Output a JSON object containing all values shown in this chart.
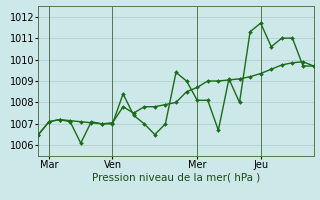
{
  "xlabel": "Pression niveau de la mer( hPa )",
  "background_color": "#cce8e8",
  "grid_color": "#aacccc",
  "line_color": "#1a6b1a",
  "spine_color": "#557755",
  "ylim": [
    1005.5,
    1012.5
  ],
  "yticks": [
    1006,
    1007,
    1008,
    1009,
    1010,
    1011,
    1012
  ],
  "xlim": [
    0,
    156
  ],
  "xtick_labels": [
    "Mar",
    "Ven",
    "Mer",
    "Jeu"
  ],
  "xtick_positions": [
    6,
    42,
    90,
    126
  ],
  "vline_positions": [
    6,
    42,
    90,
    126
  ],
  "series1_x": [
    0,
    6,
    12,
    18,
    24,
    30,
    36,
    42,
    48,
    54,
    60,
    66,
    72,
    78,
    84,
    90,
    96,
    102,
    108,
    114,
    120,
    126,
    132,
    138,
    144,
    150,
    156
  ],
  "series1_y": [
    1006.5,
    1007.1,
    1007.2,
    1007.1,
    1006.1,
    1007.1,
    1007.0,
    1007.0,
    1008.4,
    1007.4,
    1007.0,
    1006.5,
    1007.0,
    1009.4,
    1009.0,
    1008.1,
    1008.1,
    1006.7,
    1009.1,
    1008.0,
    1011.3,
    1011.7,
    1010.6,
    1011.0,
    1011.0,
    1009.7,
    1009.7
  ],
  "series2_x": [
    0,
    6,
    12,
    18,
    24,
    30,
    36,
    42,
    48,
    54,
    60,
    66,
    72,
    78,
    84,
    90,
    96,
    102,
    108,
    114,
    120,
    126,
    132,
    138,
    144,
    150,
    156
  ],
  "series2_y": [
    1006.5,
    1007.1,
    1007.2,
    1007.15,
    1007.1,
    1007.05,
    1007.0,
    1007.05,
    1007.8,
    1007.5,
    1007.8,
    1007.8,
    1007.9,
    1008.0,
    1008.5,
    1008.7,
    1009.0,
    1009.0,
    1009.05,
    1009.1,
    1009.2,
    1009.35,
    1009.55,
    1009.75,
    1009.85,
    1009.9,
    1009.7
  ],
  "marker": "D",
  "marker_size": 2.0,
  "linewidth": 1.0,
  "xlabel_fontsize": 7.5,
  "tick_fontsize": 7
}
